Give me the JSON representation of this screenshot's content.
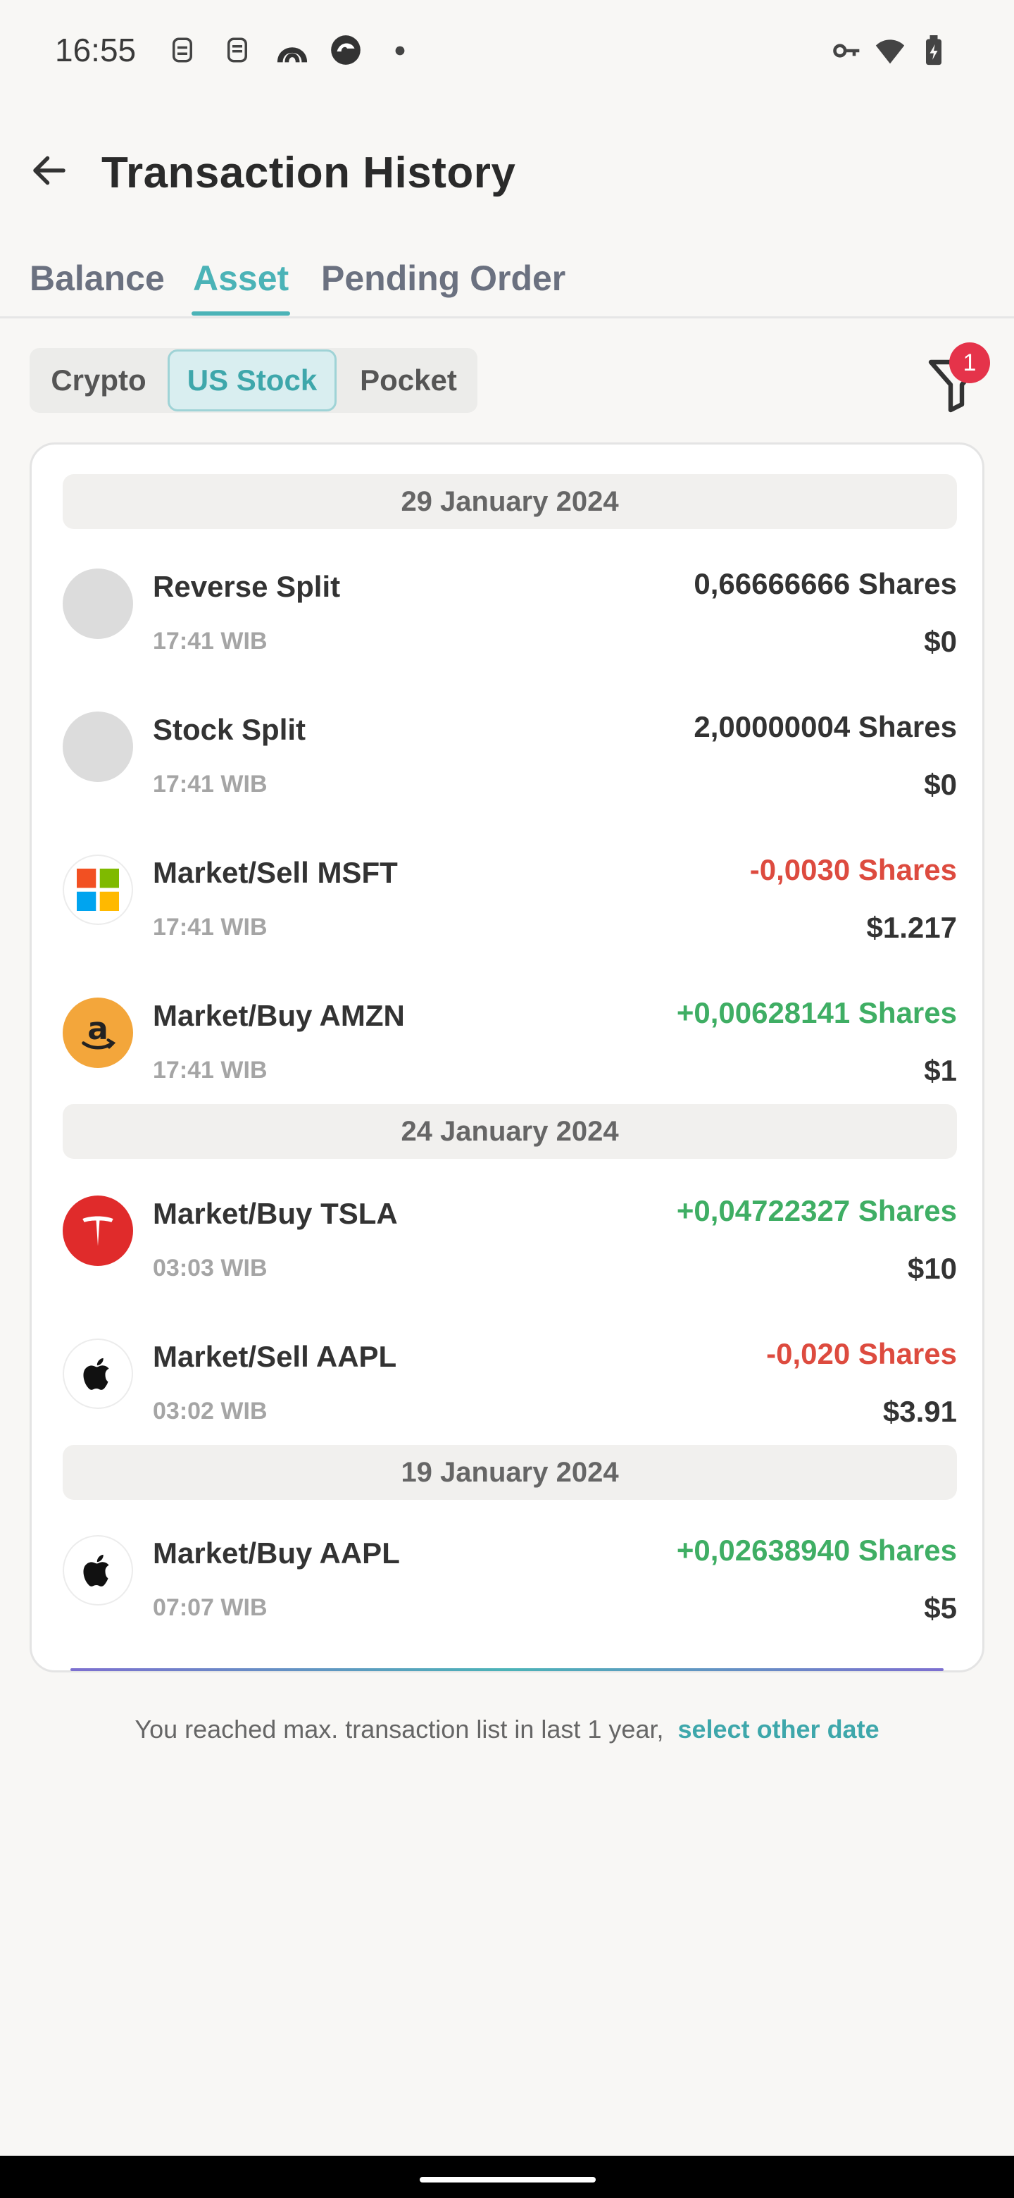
{
  "status_bar": {
    "time": "16:55",
    "icons_left": [
      "keyboard-face-icon",
      "stack-icon",
      "arch-icon",
      "browser-icon",
      "dot-icon"
    ],
    "icons_right": [
      "key-icon",
      "wifi-icon",
      "battery-icon"
    ]
  },
  "header": {
    "back_icon": "arrow-left-icon",
    "title": "Transaction History"
  },
  "main_tabs": [
    {
      "label": "Balance",
      "active": false
    },
    {
      "label": "Asset",
      "active": true
    },
    {
      "label": "Pending Order",
      "active": false
    }
  ],
  "segments": [
    {
      "label": "Crypto",
      "active": false
    },
    {
      "label": "US Stock",
      "active": true
    },
    {
      "label": "Pocket",
      "active": false
    }
  ],
  "filter": {
    "icon": "filter-icon",
    "badge": "1"
  },
  "groups": [
    {
      "date": "29 January 2024",
      "transactions": [
        {
          "title": "Reverse Split",
          "time": "17:41 WIB",
          "shares": "0,66666666 Shares",
          "amount": "$0",
          "logo": "placeholder"
        },
        {
          "title": "Stock Split",
          "time": "17:41 WIB",
          "shares": "2,00000004 Shares",
          "amount": "$0",
          "logo": "placeholder"
        },
        {
          "title": "Market/Sell MSFT",
          "time": "17:41 WIB",
          "shares": "-0,0030 Shares",
          "amount": "$1.217",
          "logo": "microsoft-logo"
        },
        {
          "title": "Market/Buy AMZN",
          "time": "17:41 WIB",
          "shares": "+0,00628141 Shares",
          "amount": "$1",
          "logo": "amazon-logo"
        }
      ]
    },
    {
      "date": "24 January 2024",
      "transactions": [
        {
          "title": "Market/Buy TSLA",
          "time": "03:03 WIB",
          "shares": "+0,04722327 Shares",
          "amount": "$10",
          "logo": "tesla-logo"
        },
        {
          "title": "Market/Sell AAPL",
          "time": "03:02 WIB",
          "shares": "-0,020 Shares",
          "amount": "$3.91",
          "logo": "apple-logo"
        }
      ]
    },
    {
      "date": "19 January 2024",
      "transactions": [
        {
          "title": "Market/Buy AAPL",
          "time": "07:07 WIB",
          "shares": "+0,02638940 Shares",
          "amount": "$5",
          "logo": "apple-logo"
        }
      ]
    }
  ],
  "footer": {
    "note": "You reached max. transaction list in last 1 year,",
    "link": "select other date"
  },
  "colors": {
    "accent": "#4bb3b7",
    "negative": "#dd4b3f",
    "positive": "#3fae64",
    "badge": "#e5334a"
  }
}
